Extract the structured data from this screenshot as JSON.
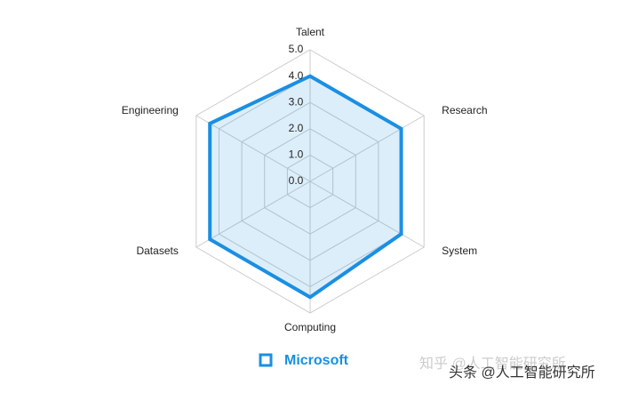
{
  "chart_data": {
    "type": "radar",
    "categories": [
      "Talent",
      "Research",
      "System",
      "Computing",
      "Datasets",
      "Engineering"
    ],
    "series": [
      {
        "name": "Microsoft",
        "color": "#1a8fe3",
        "values": [
          4.0,
          4.0,
          4.0,
          4.4,
          4.4,
          4.4
        ]
      }
    ],
    "rlim": [
      0,
      5
    ],
    "rticks": [
      {
        "value": 0,
        "label": "0.0"
      },
      {
        "value": 1,
        "label": "1.0"
      },
      {
        "value": 2,
        "label": "2.0"
      },
      {
        "value": 3,
        "label": "3.0"
      },
      {
        "value": 4,
        "label": "4.0"
      },
      {
        "value": 5,
        "label": "5.0"
      }
    ],
    "grid": true,
    "legend": "bottom",
    "watermarks": [
      "知乎 @人工智能研究所",
      "头条 @人工智能研究所"
    ]
  }
}
